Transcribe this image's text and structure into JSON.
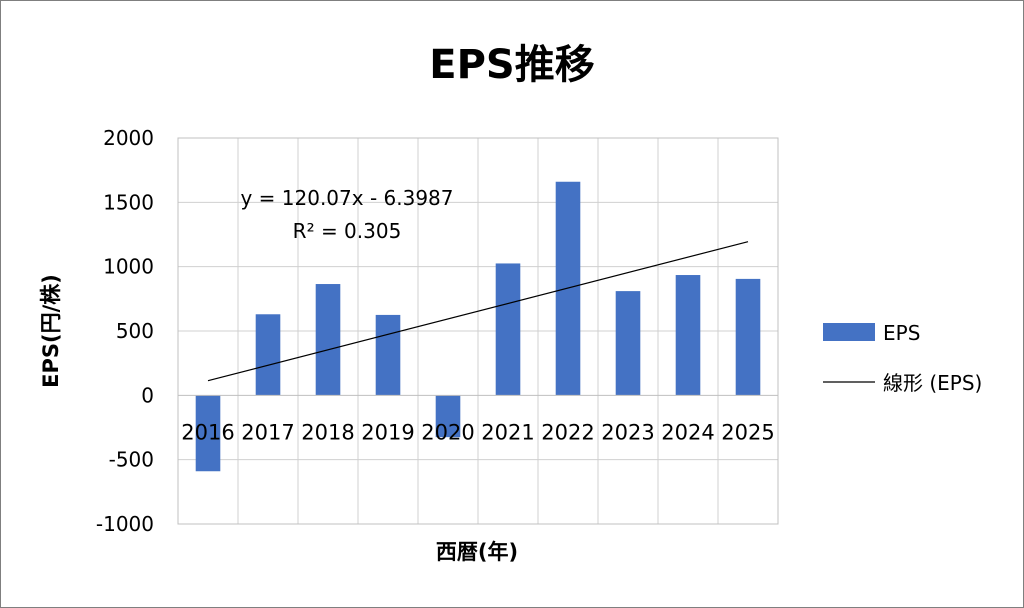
{
  "chart_data": {
    "type": "bar",
    "title": "EPS推移",
    "xlabel": "西暦(年)",
    "ylabel": "EPS(円/株)",
    "categories": [
      "2016",
      "2017",
      "2018",
      "2019",
      "2020",
      "2021",
      "2022",
      "2023",
      "2024",
      "2025"
    ],
    "series": [
      {
        "name": "EPS",
        "color": "#4472C4",
        "values": [
          -590,
          630,
          865,
          625,
          -325,
          1025,
          1660,
          810,
          935,
          905
        ]
      }
    ],
    "trendline": {
      "name": "線形 (EPS)",
      "type": "linear",
      "slope": 120.07,
      "intercept": -6.3987,
      "equation": "y = 120.07x - 6.3987",
      "r_squared": "R² = 0.305",
      "color": "#000000"
    },
    "ylim": [
      -1000,
      2000
    ],
    "yticks": [
      "2000",
      "1500",
      "1000",
      "500",
      "0",
      "-500",
      "-1000"
    ],
    "ytick_values": [
      2000,
      1500,
      1000,
      500,
      0,
      -500,
      -1000
    ],
    "grid": true,
    "legend_position": "right"
  }
}
